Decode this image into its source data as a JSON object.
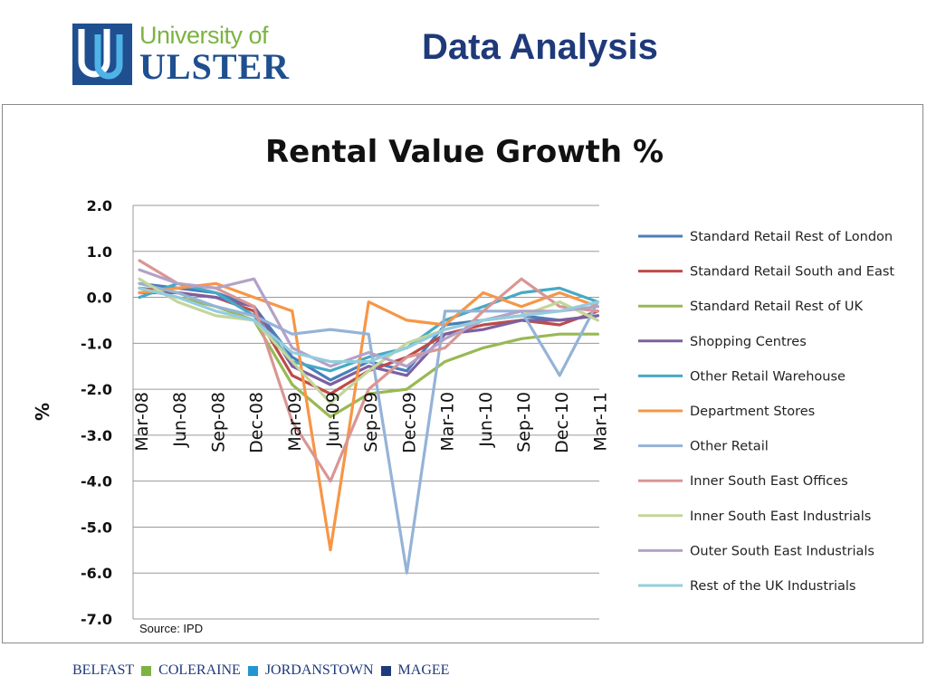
{
  "header": {
    "logo_line1": "University of",
    "logo_line2": "ULSTER",
    "page_title": "Data Analysis"
  },
  "footer": {
    "campuses": [
      "BELFAST",
      "COLERAINE",
      "JORDANSTOWN",
      "MAGEE"
    ],
    "marker_colors": [
      "#7cb342",
      "#2196d3",
      "#1f3a7a"
    ]
  },
  "chart_data": {
    "type": "line",
    "title": "Rental Value Growth %",
    "ylabel": "%",
    "xlabel": "",
    "ylim": [
      -7.0,
      2.0
    ],
    "yticks": [
      "2.0",
      "1.0",
      "0.0",
      "-1.0",
      "-2.0",
      "-3.0",
      "-4.0",
      "-5.0",
      "-6.0",
      "-7.0"
    ],
    "categories": [
      "Mar-08",
      "Jun-08",
      "Sep-08",
      "Dec-08",
      "Mar-09",
      "Jun-09",
      "Sep-09",
      "Dec-09",
      "Mar-10",
      "Jun-10",
      "Sep-10",
      "Dec-10",
      "Mar-11"
    ],
    "grid": "horizontal",
    "legend_position": "right",
    "source_note": "Source: IPD",
    "series": [
      {
        "name": "Standard Retail Rest of London",
        "color": "#4a7ebb",
        "values": [
          0.3,
          0.2,
          0.1,
          -0.2,
          -1.3,
          -1.8,
          -1.4,
          -1.6,
          -0.6,
          -0.5,
          -0.4,
          -0.5,
          -0.4
        ]
      },
      {
        "name": "Standard Retail South and East",
        "color": "#be4b48",
        "values": [
          0.2,
          0.1,
          0.0,
          -0.3,
          -1.7,
          -2.1,
          -1.6,
          -1.3,
          -0.8,
          -0.6,
          -0.5,
          -0.6,
          -0.3
        ]
      },
      {
        "name": "Standard Retail Rest of UK",
        "color": "#98b954",
        "values": [
          0.2,
          0.0,
          -0.2,
          -0.5,
          -1.9,
          -2.6,
          -2.1,
          -2.0,
          -1.4,
          -1.1,
          -0.9,
          -0.8,
          -0.8
        ]
      },
      {
        "name": "Shopping Centres",
        "color": "#7d60a0",
        "values": [
          0.1,
          0.1,
          0.0,
          -0.2,
          -1.5,
          -1.9,
          -1.5,
          -1.7,
          -0.8,
          -0.7,
          -0.5,
          -0.5,
          -0.4
        ]
      },
      {
        "name": "Other Retail Warehouse",
        "color": "#46aac5",
        "values": [
          0.0,
          0.3,
          0.1,
          -0.4,
          -1.4,
          -1.6,
          -1.3,
          -1.1,
          -0.5,
          -0.2,
          0.1,
          0.2,
          -0.1
        ]
      },
      {
        "name": "Department Stores",
        "color": "#f79646",
        "values": [
          0.1,
          0.2,
          0.3,
          0.0,
          -0.3,
          -5.5,
          -0.1,
          -0.5,
          -0.6,
          0.1,
          -0.2,
          0.1,
          -0.2
        ]
      },
      {
        "name": "Other Retail",
        "color": "#95b3d7",
        "values": [
          0.3,
          0.1,
          -0.2,
          -0.4,
          -0.8,
          -0.7,
          -0.8,
          -6.0,
          -0.3,
          -0.3,
          -0.3,
          -1.7,
          -0.1
        ]
      },
      {
        "name": "Inner South East Offices",
        "color": "#d99694",
        "values": [
          0.8,
          0.3,
          0.2,
          -0.2,
          -2.7,
          -4.0,
          -2.0,
          -1.3,
          -1.1,
          -0.3,
          0.4,
          -0.2,
          -0.3
        ]
      },
      {
        "name": "Inner South East Industrials",
        "color": "#c3d69b",
        "values": [
          0.4,
          -0.1,
          -0.4,
          -0.5,
          -1.4,
          -2.3,
          -1.6,
          -1.0,
          -0.7,
          -0.5,
          -0.4,
          -0.1,
          -0.5
        ]
      },
      {
        "name": "Outer South East Industrials",
        "color": "#b3a2c7",
        "values": [
          0.6,
          0.3,
          0.2,
          0.4,
          -1.1,
          -1.5,
          -1.2,
          -1.5,
          -0.9,
          -0.5,
          -0.3,
          -0.3,
          -0.2
        ]
      },
      {
        "name": "Rest of the UK Industrials",
        "color": "#93cddd",
        "values": [
          0.2,
          0.0,
          -0.3,
          -0.5,
          -1.2,
          -1.4,
          -1.4,
          -1.1,
          -0.7,
          -0.5,
          -0.4,
          -0.3,
          -0.1
        ]
      }
    ]
  }
}
